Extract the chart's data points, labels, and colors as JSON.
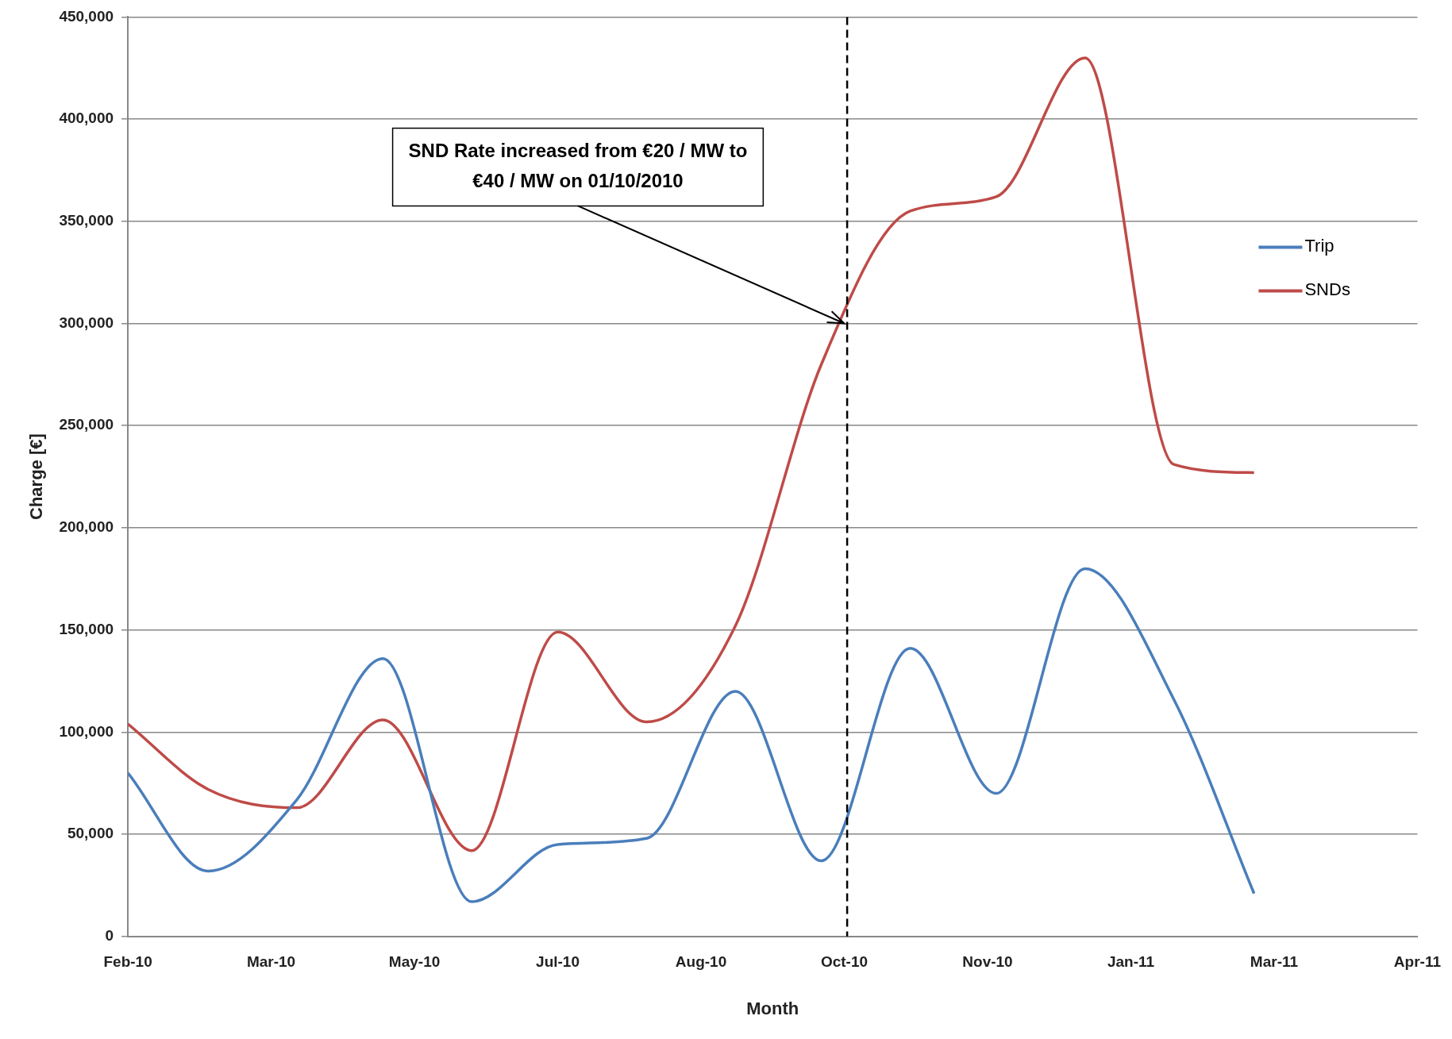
{
  "chart_data": {
    "type": "line",
    "xlabel": "Month",
    "ylabel": "Charge [€]",
    "x": [
      "2010-02-01",
      "2010-03-01",
      "2010-04-01",
      "2010-05-01",
      "2010-06-01",
      "2010-07-01",
      "2010-08-01",
      "2010-09-01",
      "2010-10-01",
      "2010-11-01",
      "2010-12-01",
      "2011-01-01",
      "2011-02-01",
      "2011-03-01"
    ],
    "series": [
      {
        "name": "Trip",
        "color": "#4a7ebb",
        "values": [
          80000,
          32000,
          67000,
          136000,
          17000,
          45000,
          48000,
          120000,
          37000,
          141000,
          70000,
          180000,
          116000,
          21000
        ]
      },
      {
        "name": "SNDs",
        "color": "#be4b48",
        "values": [
          104000,
          72000,
          63000,
          106000,
          42000,
          149000,
          105000,
          152000,
          280000,
          355000,
          362000,
          430000,
          231000,
          227000
        ]
      }
    ],
    "xlim": [
      "2010-02-01",
      "2011-04-27"
    ],
    "xticks": [
      {
        "value": "2010-02-01",
        "label": "Feb-10"
      },
      {
        "value": "2010-03-23",
        "label": "Mar-10"
      },
      {
        "value": "2010-05-12",
        "label": "May-10"
      },
      {
        "value": "2010-07-01",
        "label": "Jul-10"
      },
      {
        "value": "2010-08-20",
        "label": "Aug-10"
      },
      {
        "value": "2010-10-09",
        "label": "Oct-10"
      },
      {
        "value": "2010-11-28",
        "label": "Nov-10"
      },
      {
        "value": "2011-01-17",
        "label": "Jan-11"
      },
      {
        "value": "2011-03-08",
        "label": "Mar-11"
      },
      {
        "value": "2011-04-27",
        "label": "Apr-11"
      }
    ],
    "ylim": [
      0,
      450000
    ],
    "yticks": [
      {
        "value": 0,
        "label": "0"
      },
      {
        "value": 50000,
        "label": "50,000"
      },
      {
        "value": 100000,
        "label": "100,000"
      },
      {
        "value": 150000,
        "label": "150,000"
      },
      {
        "value": 200000,
        "label": "200,000"
      },
      {
        "value": 250000,
        "label": "250,000"
      },
      {
        "value": 300000,
        "label": "300,000"
      },
      {
        "value": 350000,
        "label": "350,000"
      },
      {
        "value": 400000,
        "label": "400,000"
      },
      {
        "value": 450000,
        "label": "450,000"
      }
    ],
    "ref_lines": [
      {
        "axis": "x",
        "value": "2010-10-10",
        "line_style": "dashed",
        "color": "#000000"
      }
    ],
    "annotations": [
      {
        "text": "SND Rate increased from €20 / MW to €40 / MW on 01/10/2010",
        "x": "2010-10-09",
        "y": 300000
      }
    ],
    "grid": "y",
    "legend": "top right",
    "marker": "none",
    "line_style": "solid"
  }
}
